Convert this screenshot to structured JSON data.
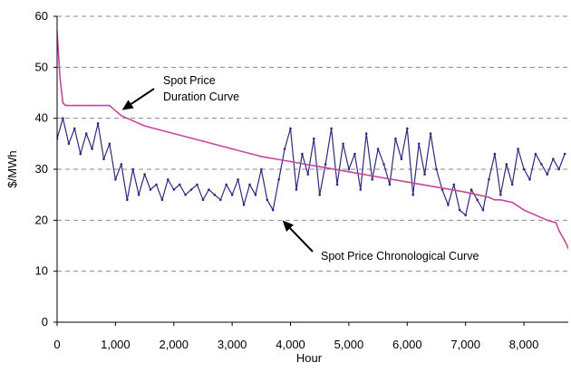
{
  "chart_data": {
    "type": "line",
    "title": "",
    "xlabel": "Hour",
    "ylabel": "$/MWh",
    "xlim": [
      0,
      8760
    ],
    "ylim": [
      0,
      60
    ],
    "x_ticks": [
      0,
      1000,
      2000,
      3000,
      4000,
      5000,
      6000,
      7000,
      8000
    ],
    "x_tick_labels": [
      "0",
      "1,000",
      "2,000",
      "3,000",
      "4,000",
      "5,000",
      "6,000",
      "7,000",
      "8,000"
    ],
    "y_ticks": [
      0,
      10,
      20,
      30,
      40,
      50,
      60
    ],
    "y_tick_labels": [
      "0",
      "10",
      "20",
      "30",
      "40",
      "50",
      "60"
    ],
    "grid": "horizontal dashed",
    "legend": "none",
    "series": [
      {
        "name": "Spot Price Duration Curve",
        "color": "#c8469b",
        "x": [
          0,
          50,
          100,
          150,
          300,
          600,
          900,
          1050,
          1100,
          1200,
          1500,
          2000,
          2500,
          3000,
          3500,
          4000,
          4500,
          5000,
          5500,
          6000,
          6500,
          7000,
          7400,
          7500,
          7600,
          7800,
          8000,
          8200,
          8400,
          8550,
          8600,
          8700,
          8760
        ],
        "y": [
          57,
          48,
          43,
          42.5,
          42.5,
          42.5,
          42.5,
          41,
          40.5,
          40,
          38.5,
          37,
          35.5,
          34,
          32.5,
          31.5,
          30.5,
          29.5,
          28.5,
          27.5,
          26.5,
          25.5,
          24.5,
          24,
          24,
          23.5,
          22,
          21,
          20,
          19.5,
          18,
          16,
          14.5
        ]
      },
      {
        "name": "Spot Price Chronological Curve",
        "color": "#2e2b7c",
        "x": [
          0,
          100,
          200,
          300,
          400,
          500,
          600,
          700,
          800,
          900,
          1000,
          1100,
          1200,
          1300,
          1400,
          1500,
          1600,
          1700,
          1800,
          1900,
          2000,
          2100,
          2200,
          2300,
          2400,
          2500,
          2600,
          2700,
          2800,
          2900,
          3000,
          3100,
          3200,
          3300,
          3400,
          3500,
          3600,
          3700,
          3800,
          3900,
          4000,
          4100,
          4200,
          4300,
          4400,
          4500,
          4600,
          4700,
          4800,
          4900,
          5000,
          5100,
          5200,
          5300,
          5400,
          5500,
          5600,
          5700,
          5800,
          5900,
          6000,
          6100,
          6200,
          6300,
          6400,
          6500,
          6600,
          6700,
          6800,
          6900,
          7000,
          7100,
          7200,
          7300,
          7400,
          7500,
          7600,
          7700,
          7800,
          7900,
          8000,
          8100,
          8200,
          8300,
          8400,
          8500,
          8600,
          8700
        ],
        "y": [
          36,
          40,
          35,
          38,
          33,
          37,
          34,
          39,
          32,
          35,
          28,
          31,
          24,
          30,
          25,
          29,
          26,
          27,
          24,
          28,
          26,
          27,
          25,
          26,
          27,
          24,
          26,
          25,
          24,
          27,
          25,
          28,
          23,
          27,
          25,
          30,
          24,
          22,
          28,
          34,
          38,
          26,
          33,
          29,
          36,
          25,
          31,
          38,
          27,
          35,
          30,
          33,
          26,
          37,
          28,
          34,
          31,
          27,
          36,
          32,
          38,
          25,
          35,
          29,
          37,
          30,
          26,
          23,
          27,
          22,
          21,
          26,
          24,
          22,
          28,
          33,
          25,
          31,
          27,
          34,
          30,
          28,
          33,
          31,
          29,
          32,
          30,
          33
        ]
      }
    ],
    "annotations": [
      {
        "text_lines": [
          "Spot Price",
          "Duration Curve"
        ],
        "points_to": [
          1050,
          42.5
        ]
      },
      {
        "text_lines": [
          "Spot Price Chronological Curve"
        ],
        "points_to": [
          3800,
          20.5
        ]
      }
    ]
  }
}
